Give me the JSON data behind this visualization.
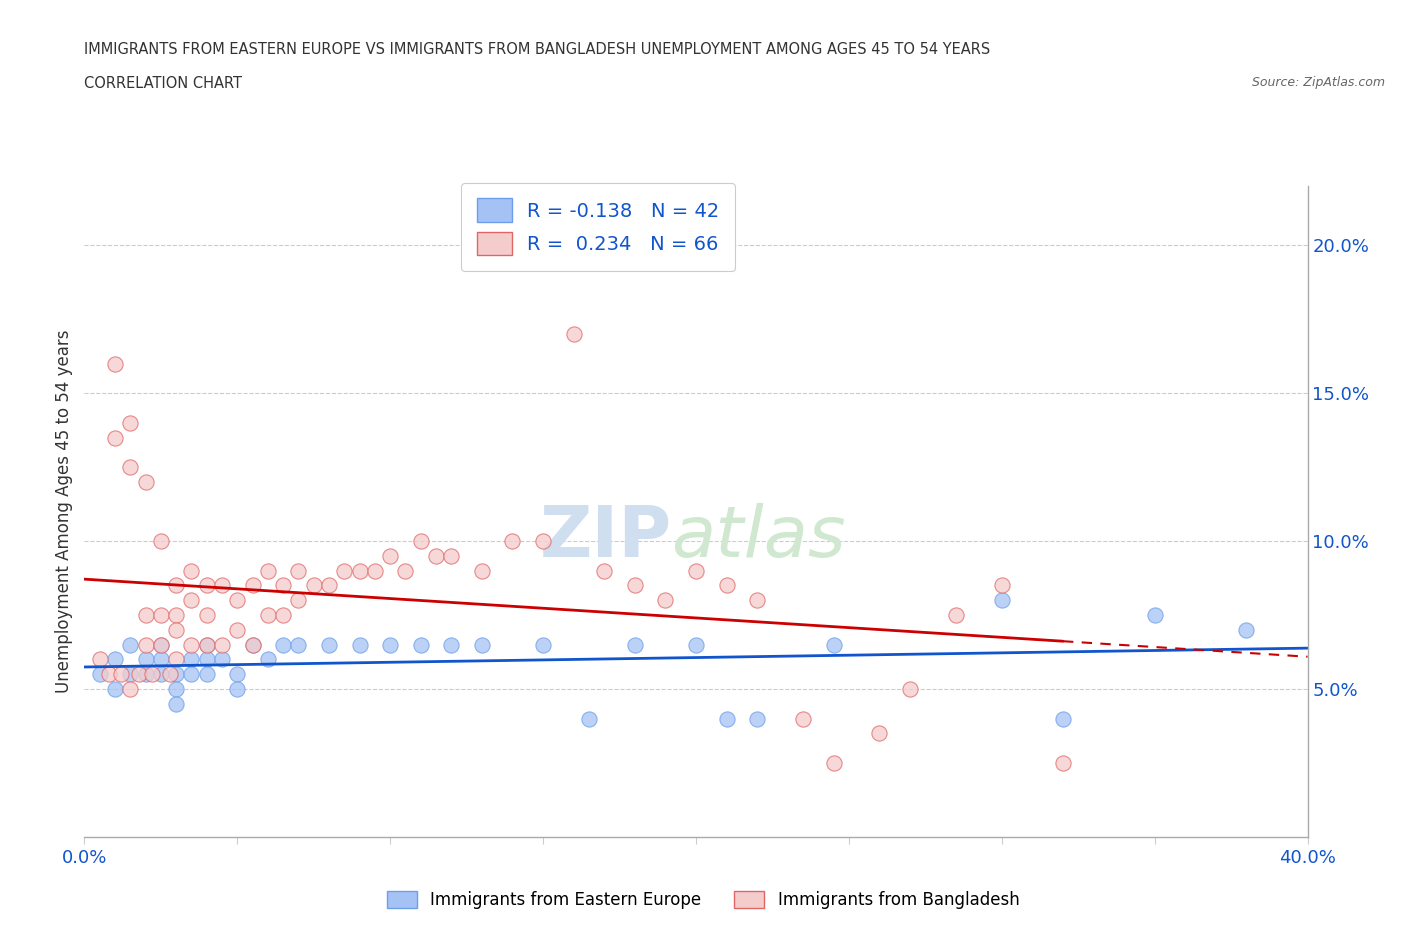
{
  "title_line1": "IMMIGRANTS FROM EASTERN EUROPE VS IMMIGRANTS FROM BANGLADESH UNEMPLOYMENT AMONG AGES 45 TO 54 YEARS",
  "title_line2": "CORRELATION CHART",
  "source_text": "Source: ZipAtlas.com",
  "ylabel": "Unemployment Among Ages 45 to 54 years",
  "xlim": [
    0.0,
    0.4
  ],
  "ylim": [
    0.0,
    0.22
  ],
  "xticks": [
    0.0,
    0.05,
    0.1,
    0.15,
    0.2,
    0.25,
    0.3,
    0.35,
    0.4
  ],
  "xticklabels": [
    "0.0%",
    "",
    "",
    "",
    "",
    "",
    "",
    "",
    "40.0%"
  ],
  "yticks_right": [
    0.05,
    0.1,
    0.15,
    0.2
  ],
  "ytick_labels_right": [
    "5.0%",
    "10.0%",
    "15.0%",
    "20.0%"
  ],
  "blue_color": "#a4c2f4",
  "pink_color": "#f4cccc",
  "blue_edge_color": "#6d9eeb",
  "pink_edge_color": "#e06666",
  "blue_line_color": "#1155cc",
  "pink_line_color": "#cc0000",
  "watermark": "ZIPatlas",
  "legend_R1": "R = -0.138",
  "legend_N1": "N = 42",
  "legend_R2": "R =  0.234",
  "legend_N2": "N = 66",
  "blue_scatter_x": [
    0.005,
    0.01,
    0.01,
    0.015,
    0.015,
    0.02,
    0.02,
    0.025,
    0.025,
    0.025,
    0.03,
    0.03,
    0.03,
    0.035,
    0.035,
    0.04,
    0.04,
    0.04,
    0.045,
    0.05,
    0.05,
    0.055,
    0.06,
    0.065,
    0.07,
    0.08,
    0.09,
    0.1,
    0.11,
    0.12,
    0.13,
    0.15,
    0.165,
    0.18,
    0.2,
    0.21,
    0.22,
    0.245,
    0.3,
    0.32,
    0.35,
    0.38
  ],
  "blue_scatter_y": [
    0.055,
    0.06,
    0.05,
    0.065,
    0.055,
    0.06,
    0.055,
    0.065,
    0.06,
    0.055,
    0.055,
    0.05,
    0.045,
    0.06,
    0.055,
    0.065,
    0.06,
    0.055,
    0.06,
    0.055,
    0.05,
    0.065,
    0.06,
    0.065,
    0.065,
    0.065,
    0.065,
    0.065,
    0.065,
    0.065,
    0.065,
    0.065,
    0.04,
    0.065,
    0.065,
    0.04,
    0.04,
    0.065,
    0.08,
    0.04,
    0.075,
    0.07
  ],
  "pink_scatter_x": [
    0.005,
    0.008,
    0.01,
    0.01,
    0.012,
    0.015,
    0.015,
    0.015,
    0.018,
    0.02,
    0.02,
    0.02,
    0.022,
    0.025,
    0.025,
    0.025,
    0.028,
    0.03,
    0.03,
    0.03,
    0.03,
    0.035,
    0.035,
    0.035,
    0.04,
    0.04,
    0.04,
    0.045,
    0.045,
    0.05,
    0.05,
    0.055,
    0.055,
    0.06,
    0.06,
    0.065,
    0.065,
    0.07,
    0.07,
    0.075,
    0.08,
    0.085,
    0.09,
    0.095,
    0.1,
    0.105,
    0.11,
    0.115,
    0.12,
    0.13,
    0.14,
    0.15,
    0.16,
    0.17,
    0.18,
    0.19,
    0.2,
    0.21,
    0.22,
    0.235,
    0.245,
    0.26,
    0.27,
    0.285,
    0.3,
    0.32
  ],
  "pink_scatter_y": [
    0.06,
    0.055,
    0.16,
    0.135,
    0.055,
    0.14,
    0.125,
    0.05,
    0.055,
    0.12,
    0.075,
    0.065,
    0.055,
    0.1,
    0.075,
    0.065,
    0.055,
    0.085,
    0.075,
    0.07,
    0.06,
    0.09,
    0.08,
    0.065,
    0.085,
    0.075,
    0.065,
    0.085,
    0.065,
    0.08,
    0.07,
    0.085,
    0.065,
    0.09,
    0.075,
    0.085,
    0.075,
    0.09,
    0.08,
    0.085,
    0.085,
    0.09,
    0.09,
    0.09,
    0.095,
    0.09,
    0.1,
    0.095,
    0.095,
    0.09,
    0.1,
    0.1,
    0.17,
    0.09,
    0.085,
    0.08,
    0.09,
    0.085,
    0.08,
    0.04,
    0.025,
    0.035,
    0.05,
    0.075,
    0.085,
    0.025
  ]
}
